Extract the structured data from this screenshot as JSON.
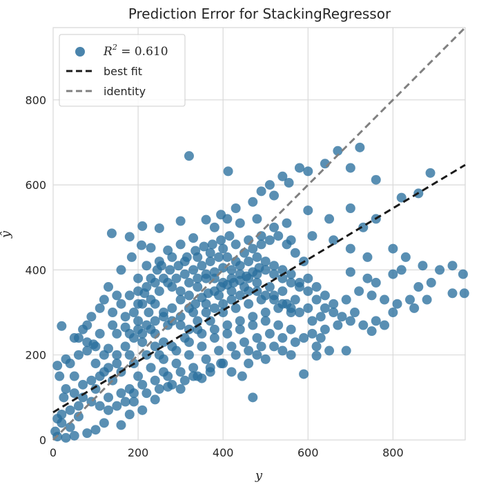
{
  "chart_data": {
    "type": "scatter",
    "title": "Prediction Error for StackingRegressor",
    "xlabel": "y",
    "ylabel": "ŷ",
    "xlim": [
      0,
      970
    ],
    "ylim": [
      0,
      970
    ],
    "xticks": [
      "0",
      "200",
      "400",
      "600",
      "800"
    ],
    "yticks": [
      "0",
      "200",
      "400",
      "600",
      "800"
    ],
    "grid": true,
    "legend_position": "top-left",
    "colors": {
      "points": "#2a6f9e",
      "best_fit": "#1a1a1a",
      "identity": "#808080",
      "grid": "#d9d9d9"
    },
    "best_fit": {
      "intercept": 65,
      "slope": 0.6
    },
    "legend": [
      {
        "kind": "points",
        "label": "R² = 0.610",
        "math": {
          "symbol": "R",
          "exp": "2",
          "rest": " = 0.610"
        }
      },
      {
        "kind": "best_fit",
        "label": "best fit"
      },
      {
        "kind": "identity",
        "label": "identity"
      }
    ],
    "points": [
      [
        320,
        668
      ],
      [
        412,
        632
      ],
      [
        670,
        680
      ],
      [
        722,
        688
      ],
      [
        888,
        628
      ],
      [
        580,
        640
      ],
      [
        600,
        632
      ],
      [
        640,
        650
      ],
      [
        700,
        640
      ],
      [
        760,
        612
      ],
      [
        820,
        570
      ],
      [
        860,
        580
      ],
      [
        540,
        620
      ],
      [
        510,
        600
      ],
      [
        490,
        585
      ],
      [
        555,
        605
      ],
      [
        520,
        575
      ],
      [
        470,
        560
      ],
      [
        430,
        545
      ],
      [
        395,
        530
      ],
      [
        360,
        518
      ],
      [
        300,
        515
      ],
      [
        250,
        498
      ],
      [
        210,
        503
      ],
      [
        138,
        486
      ],
      [
        180,
        478
      ],
      [
        208,
        458
      ],
      [
        230,
        452
      ],
      [
        270,
        446
      ],
      [
        300,
        460
      ],
      [
        330,
        475
      ],
      [
        380,
        500
      ],
      [
        410,
        520
      ],
      [
        440,
        510
      ],
      [
        480,
        520
      ],
      [
        600,
        540
      ],
      [
        650,
        520
      ],
      [
        700,
        545
      ],
      [
        730,
        500
      ],
      [
        760,
        520
      ],
      [
        610,
        480
      ],
      [
        560,
        470
      ],
      [
        660,
        470
      ],
      [
        700,
        450
      ],
      [
        740,
        430
      ],
      [
        800,
        450
      ],
      [
        830,
        430
      ],
      [
        870,
        410
      ],
      [
        910,
        400
      ],
      [
        940,
        410
      ],
      [
        965,
        390
      ],
      [
        968,
        345
      ],
      [
        940,
        345
      ],
      [
        890,
        370
      ],
      [
        860,
        360
      ],
      [
        840,
        330
      ],
      [
        810,
        320
      ],
      [
        780,
        330
      ],
      [
        750,
        340
      ],
      [
        720,
        350
      ],
      [
        690,
        330
      ],
      [
        660,
        320
      ],
      [
        640,
        340
      ],
      [
        620,
        360
      ],
      [
        600,
        380
      ],
      [
        700,
        395
      ],
      [
        740,
        380
      ],
      [
        760,
        370
      ],
      [
        800,
        390
      ],
      [
        820,
        400
      ],
      [
        880,
        330
      ],
      [
        850,
        310
      ],
      [
        800,
        300
      ],
      [
        780,
        270
      ],
      [
        760,
        280
      ],
      [
        730,
        270
      ],
      [
        700,
        280
      ],
      [
        670,
        270
      ],
      [
        640,
        260
      ],
      [
        630,
        240
      ],
      [
        610,
        250
      ],
      [
        680,
        290
      ],
      [
        710,
        300
      ],
      [
        750,
        256
      ],
      [
        690,
        210
      ],
      [
        650,
        210
      ],
      [
        620,
        198
      ],
      [
        590,
        155
      ],
      [
        560,
        200
      ],
      [
        540,
        210
      ],
      [
        520,
        220
      ],
      [
        500,
        190
      ],
      [
        480,
        200
      ],
      [
        460,
        180
      ],
      [
        445,
        150
      ],
      [
        420,
        160
      ],
      [
        395,
        180
      ],
      [
        370,
        170
      ],
      [
        350,
        145
      ],
      [
        470,
        100
      ],
      [
        330,
        150
      ],
      [
        300,
        120
      ],
      [
        270,
        125
      ],
      [
        240,
        95
      ],
      [
        210,
        70
      ],
      [
        180,
        60
      ],
      [
        160,
        35
      ],
      [
        120,
        40
      ],
      [
        100,
        24
      ],
      [
        80,
        16
      ],
      [
        50,
        10
      ],
      [
        30,
        5
      ],
      [
        10,
        8
      ],
      [
        5,
        20
      ],
      [
        20,
        40
      ],
      [
        40,
        30
      ],
      [
        60,
        55
      ],
      [
        25,
        100
      ],
      [
        15,
        150
      ],
      [
        10,
        175
      ],
      [
        30,
        190
      ],
      [
        20,
        268
      ],
      [
        50,
        240
      ],
      [
        70,
        260
      ],
      [
        95,
        225
      ],
      [
        130,
        215
      ],
      [
        150,
        250
      ],
      [
        170,
        290
      ],
      [
        190,
        300
      ],
      [
        210,
        320
      ],
      [
        230,
        330
      ],
      [
        250,
        350
      ],
      [
        270,
        370
      ],
      [
        290,
        380
      ],
      [
        310,
        390
      ],
      [
        330,
        400
      ],
      [
        350,
        410
      ],
      [
        370,
        420
      ],
      [
        390,
        430
      ],
      [
        410,
        430
      ],
      [
        430,
        420
      ],
      [
        450,
        440
      ],
      [
        470,
        450
      ],
      [
        490,
        460
      ],
      [
        510,
        470
      ],
      [
        530,
        480
      ],
      [
        550,
        460
      ],
      [
        570,
        440
      ],
      [
        590,
        420
      ],
      [
        130,
        360
      ],
      [
        160,
        400
      ],
      [
        185,
        430
      ],
      [
        200,
        380
      ],
      [
        150,
        340
      ],
      [
        120,
        330
      ],
      [
        110,
        310
      ],
      [
        90,
        290
      ],
      [
        80,
        270
      ],
      [
        110,
        250
      ],
      [
        140,
        270
      ],
      [
        170,
        265
      ],
      [
        200,
        280
      ],
      [
        225,
        300
      ],
      [
        240,
        320
      ],
      [
        260,
        300
      ],
      [
        280,
        310
      ],
      [
        300,
        330
      ],
      [
        320,
        340
      ],
      [
        340,
        360
      ],
      [
        360,
        380
      ],
      [
        380,
        395
      ],
      [
        400,
        405
      ],
      [
        420,
        400
      ],
      [
        440,
        410
      ],
      [
        460,
        420
      ],
      [
        480,
        430
      ],
      [
        500,
        420
      ],
      [
        520,
        410
      ],
      [
        540,
        400
      ],
      [
        560,
        390
      ],
      [
        580,
        370
      ],
      [
        600,
        350
      ],
      [
        620,
        330
      ],
      [
        640,
        310
      ],
      [
        660,
        300
      ],
      [
        150,
        180
      ],
      [
        180,
        200
      ],
      [
        210,
        230
      ],
      [
        240,
        250
      ],
      [
        270,
        270
      ],
      [
        300,
        290
      ],
      [
        330,
        300
      ],
      [
        360,
        320
      ],
      [
        390,
        340
      ],
      [
        420,
        350
      ],
      [
        450,
        360
      ],
      [
        480,
        370
      ],
      [
        510,
        360
      ],
      [
        540,
        350
      ],
      [
        570,
        330
      ],
      [
        600,
        310
      ],
      [
        630,
        290
      ],
      [
        250,
        200
      ],
      [
        280,
        220
      ],
      [
        310,
        240
      ],
      [
        340,
        260
      ],
      [
        370,
        280
      ],
      [
        400,
        300
      ],
      [
        430,
        310
      ],
      [
        460,
        320
      ],
      [
        490,
        330
      ],
      [
        520,
        340
      ],
      [
        550,
        320
      ],
      [
        580,
        300
      ],
      [
        610,
        280
      ],
      [
        260,
        160
      ],
      [
        290,
        180
      ],
      [
        320,
        200
      ],
      [
        350,
        220
      ],
      [
        380,
        240
      ],
      [
        410,
        250
      ],
      [
        440,
        260
      ],
      [
        470,
        270
      ],
      [
        500,
        280
      ],
      [
        530,
        270
      ],
      [
        560,
        260
      ],
      [
        590,
        240
      ],
      [
        620,
        220
      ],
      [
        200,
        150
      ],
      [
        230,
        170
      ],
      [
        260,
        190
      ],
      [
        290,
        210
      ],
      [
        320,
        230
      ],
      [
        350,
        250
      ],
      [
        380,
        260
      ],
      [
        410,
        270
      ],
      [
        440,
        280
      ],
      [
        470,
        290
      ],
      [
        500,
        300
      ],
      [
        530,
        310
      ],
      [
        560,
        300
      ],
      [
        180,
        120
      ],
      [
        210,
        130
      ],
      [
        240,
        140
      ],
      [
        270,
        150
      ],
      [
        300,
        160
      ],
      [
        330,
        170
      ],
      [
        360,
        190
      ],
      [
        390,
        210
      ],
      [
        420,
        220
      ],
      [
        450,
        230
      ],
      [
        480,
        240
      ],
      [
        510,
        250
      ],
      [
        540,
        240
      ],
      [
        570,
        230
      ],
      [
        130,
        100
      ],
      [
        160,
        110
      ],
      [
        190,
        90
      ],
      [
        220,
        110
      ],
      [
        250,
        120
      ],
      [
        280,
        130
      ],
      [
        310,
        140
      ],
      [
        340,
        150
      ],
      [
        370,
        160
      ],
      [
        400,
        180
      ],
      [
        430,
        200
      ],
      [
        460,
        210
      ],
      [
        490,
        220
      ],
      [
        100,
        120
      ],
      [
        70,
        130
      ],
      [
        50,
        150
      ],
      [
        40,
        180
      ],
      [
        60,
        200
      ],
      [
        80,
        210
      ],
      [
        100,
        180
      ],
      [
        120,
        160
      ],
      [
        140,
        140
      ],
      [
        160,
        160
      ],
      [
        190,
        180
      ],
      [
        220,
        200
      ],
      [
        240,
        220
      ],
      [
        260,
        230
      ],
      [
        180,
        250
      ],
      [
        200,
        260
      ],
      [
        220,
        270
      ],
      [
        240,
        280
      ],
      [
        260,
        290
      ],
      [
        280,
        280
      ],
      [
        300,
        270
      ],
      [
        320,
        260
      ],
      [
        340,
        280
      ],
      [
        360,
        300
      ],
      [
        380,
        310
      ],
      [
        400,
        320
      ],
      [
        420,
        330
      ],
      [
        440,
        340
      ],
      [
        460,
        350
      ],
      [
        480,
        350
      ],
      [
        500,
        340
      ],
      [
        520,
        330
      ],
      [
        540,
        320
      ],
      [
        560,
        310
      ],
      [
        90,
        90
      ],
      [
        110,
        80
      ],
      [
        130,
        70
      ],
      [
        150,
        80
      ],
      [
        170,
        90
      ],
      [
        190,
        110
      ],
      [
        60,
        80
      ],
      [
        40,
        70
      ],
      [
        20,
        60
      ],
      [
        10,
        50
      ],
      [
        30,
        120
      ],
      [
        50,
        110
      ],
      [
        70,
        100
      ],
      [
        90,
        140
      ],
      [
        110,
        150
      ],
      [
        130,
        170
      ],
      [
        150,
        200
      ],
      [
        170,
        220
      ],
      [
        190,
        240
      ],
      [
        210,
        250
      ],
      [
        230,
        260
      ],
      [
        120,
        200
      ],
      [
        100,
        220
      ],
      [
        80,
        230
      ],
      [
        60,
        240
      ],
      [
        140,
        300
      ],
      [
        160,
        320
      ],
      [
        180,
        340
      ],
      [
        200,
        350
      ],
      [
        220,
        360
      ],
      [
        240,
        370
      ],
      [
        260,
        380
      ],
      [
        280,
        360
      ],
      [
        300,
        350
      ],
      [
        320,
        370
      ],
      [
        340,
        380
      ],
      [
        360,
        390
      ],
      [
        380,
        380
      ],
      [
        400,
        370
      ],
      [
        420,
        380
      ],
      [
        440,
        390
      ],
      [
        460,
        380
      ],
      [
        480,
        390
      ],
      [
        500,
        400
      ],
      [
        520,
        390
      ],
      [
        540,
        380
      ],
      [
        560,
        370
      ],
      [
        580,
        360
      ],
      [
        220,
        410
      ],
      [
        250,
        420
      ],
      [
        280,
        430
      ],
      [
        310,
        420
      ],
      [
        340,
        430
      ],
      [
        370,
        440
      ],
      [
        400,
        450
      ],
      [
        430,
        460
      ],
      [
        460,
        470
      ],
      [
        490,
        480
      ],
      [
        520,
        500
      ],
      [
        550,
        510
      ],
      [
        200,
        320
      ],
      [
        215,
        345
      ],
      [
        230,
        380
      ],
      [
        245,
        400
      ],
      [
        255,
        410
      ],
      [
        275,
        400
      ],
      [
        295,
        410
      ],
      [
        315,
        430
      ],
      [
        335,
        445
      ],
      [
        355,
        455
      ],
      [
        375,
        460
      ],
      [
        395,
        470
      ],
      [
        415,
        480
      ],
      [
        320,
        310
      ],
      [
        335,
        320
      ],
      [
        350,
        335
      ],
      [
        365,
        345
      ],
      [
        380,
        350
      ],
      [
        395,
        360
      ],
      [
        410,
        365
      ],
      [
        425,
        370
      ],
      [
        440,
        375
      ],
      [
        455,
        385
      ],
      [
        470,
        395
      ],
      [
        485,
        405
      ]
    ]
  }
}
